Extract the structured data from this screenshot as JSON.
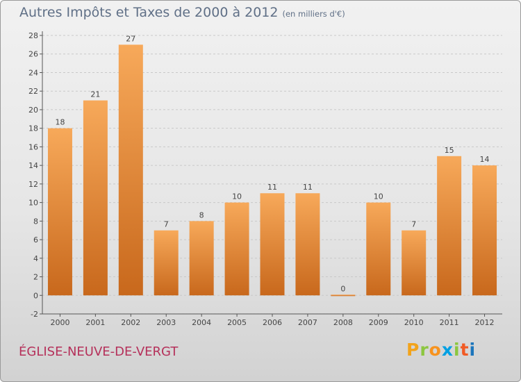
{
  "header": {
    "title": "Autres Impôts et Taxes de 2000 à 2012",
    "unit": "(en milliers d'€)"
  },
  "footer": {
    "commune": "ÉGLISE-NEUVE-DE-VERGT",
    "logo_letters": [
      "P",
      "r",
      "o",
      "x",
      "i",
      "t",
      "i"
    ],
    "logo_colors": [
      "#f2a31b",
      "#8cc63f",
      "#f7931e",
      "#00a0e3",
      "#8cc63f",
      "#f15a24",
      "#1b75bc"
    ]
  },
  "colors": {
    "bar_light": "#f7a95a",
    "bar_dark": "#c8681c",
    "grid": "#c8c8c8",
    "title": "#5f6f86",
    "commune": "#b5305a"
  },
  "chart_data": {
    "type": "bar",
    "categories": [
      "2000",
      "2001",
      "2002",
      "2003",
      "2004",
      "2005",
      "2006",
      "2007",
      "2008",
      "2009",
      "2010",
      "2011",
      "2012"
    ],
    "values": [
      18,
      21,
      27,
      7,
      8,
      10,
      11,
      11,
      0,
      10,
      7,
      15,
      14
    ],
    "title": "Autres Impôts et Taxes de 2000 à 2012",
    "xlabel": "",
    "ylabel": "",
    "ylim": [
      -2,
      28
    ],
    "yticks": [
      -2,
      0,
      2,
      4,
      6,
      8,
      10,
      12,
      14,
      16,
      18,
      20,
      22,
      24,
      26,
      28
    ],
    "grid": true
  }
}
